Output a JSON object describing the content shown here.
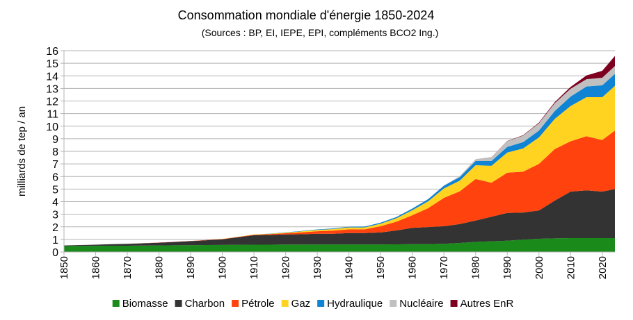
{
  "chart_data": {
    "type": "stacked_area",
    "title": "Consommation mondiale d'énergie 1850-2024",
    "subtitle": "(Sources : BP, EI, IEPE, EPI, compléments BCO2 Ing.)",
    "y_label": "milliards de tep / an",
    "x": [
      1850,
      1855,
      1860,
      1865,
      1870,
      1875,
      1880,
      1885,
      1890,
      1895,
      1900,
      1905,
      1910,
      1915,
      1920,
      1925,
      1930,
      1935,
      1940,
      1945,
      1950,
      1955,
      1960,
      1965,
      1970,
      1975,
      1980,
      1985,
      1990,
      1995,
      2000,
      2005,
      2010,
      2015,
      2020,
      2024
    ],
    "xlim": [
      1850,
      2024
    ],
    "xticks": [
      1850,
      1860,
      1870,
      1880,
      1890,
      1900,
      1910,
      1920,
      1930,
      1940,
      1950,
      1960,
      1970,
      1980,
      1990,
      2000,
      2010,
      2020
    ],
    "ylim": [
      0,
      16
    ],
    "yticks": [
      0,
      1,
      2,
      3,
      4,
      5,
      6,
      7,
      8,
      9,
      10,
      11,
      12,
      13,
      14,
      15,
      16
    ],
    "grid": true,
    "legend": "bottom",
    "series": [
      {
        "name": "Biomasse",
        "color": "#1a8a1a",
        "values": [
          0.47,
          0.48,
          0.49,
          0.5,
          0.5,
          0.51,
          0.52,
          0.53,
          0.54,
          0.55,
          0.56,
          0.57,
          0.58,
          0.58,
          0.59,
          0.59,
          0.6,
          0.6,
          0.6,
          0.6,
          0.6,
          0.61,
          0.62,
          0.63,
          0.65,
          0.72,
          0.8,
          0.85,
          0.9,
          0.98,
          1.05,
          1.08,
          1.1,
          1.1,
          1.1,
          1.1
        ]
      },
      {
        "name": "Charbon",
        "color": "#333333",
        "values": [
          0.05,
          0.07,
          0.09,
          0.12,
          0.15,
          0.18,
          0.22,
          0.27,
          0.32,
          0.38,
          0.45,
          0.6,
          0.75,
          0.78,
          0.8,
          0.82,
          0.85,
          0.85,
          0.9,
          0.9,
          0.95,
          1.1,
          1.3,
          1.35,
          1.4,
          1.5,
          1.7,
          1.95,
          2.2,
          2.15,
          2.25,
          3.0,
          3.7,
          3.8,
          3.7,
          3.9
        ]
      },
      {
        "name": "Pétrole",
        "color": "#ff420e",
        "values": [
          0,
          0,
          0,
          0,
          0,
          0.005,
          0.01,
          0.01,
          0.015,
          0.02,
          0.02,
          0.03,
          0.04,
          0.06,
          0.1,
          0.15,
          0.2,
          0.25,
          0.3,
          0.3,
          0.5,
          0.7,
          1.0,
          1.5,
          2.25,
          2.6,
          3.3,
          2.7,
          3.2,
          3.25,
          3.7,
          4.1,
          4.0,
          4.3,
          4.1,
          4.65
        ]
      },
      {
        "name": "Gaz",
        "color": "#ffd320",
        "values": [
          0,
          0,
          0,
          0,
          0,
          0,
          0,
          0,
          0,
          0,
          0.01,
          0.01,
          0.02,
          0.03,
          0.05,
          0.08,
          0.1,
          0.12,
          0.15,
          0.15,
          0.2,
          0.27,
          0.4,
          0.55,
          0.75,
          0.85,
          1.1,
          1.35,
          1.6,
          1.85,
          2.1,
          2.4,
          2.8,
          3.1,
          3.4,
          3.55
        ]
      },
      {
        "name": "Hydraulique",
        "color": "#0f83d4",
        "values": [
          0,
          0,
          0,
          0,
          0,
          0,
          0,
          0,
          0,
          0,
          0,
          0,
          0,
          0.01,
          0.02,
          0.03,
          0.04,
          0.05,
          0.06,
          0.07,
          0.08,
          0.1,
          0.13,
          0.17,
          0.22,
          0.28,
          0.33,
          0.38,
          0.45,
          0.5,
          0.55,
          0.62,
          0.75,
          0.85,
          0.95,
          0.95
        ]
      },
      {
        "name": "Nucléaire",
        "color": "#c0c0c0",
        "values": [
          0,
          0,
          0,
          0,
          0,
          0,
          0,
          0,
          0,
          0,
          0,
          0,
          0,
          0,
          0,
          0,
          0,
          0,
          0,
          0,
          0,
          0,
          0,
          0.01,
          0.02,
          0.08,
          0.15,
          0.3,
          0.45,
          0.52,
          0.58,
          0.63,
          0.62,
          0.58,
          0.6,
          0.63
        ]
      },
      {
        "name": "Autres EnR",
        "color": "#7e0021",
        "values": [
          0,
          0,
          0,
          0,
          0,
          0,
          0,
          0,
          0,
          0,
          0,
          0,
          0,
          0,
          0,
          0,
          0,
          0,
          0,
          0,
          0,
          0,
          0,
          0,
          0,
          0,
          0,
          0.01,
          0.02,
          0.03,
          0.05,
          0.08,
          0.15,
          0.3,
          0.55,
          0.8
        ]
      }
    ]
  }
}
